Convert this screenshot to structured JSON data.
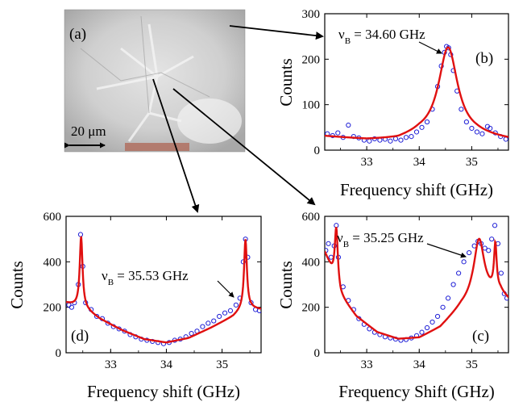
{
  "micrograph": {
    "label": "(a)",
    "scalebar_label": "20 μm"
  },
  "chart_data": [
    {
      "id": "b",
      "type": "scatter",
      "panel_label": "(b)",
      "xlabel": "Frequency shift (GHz)",
      "ylabel": "Counts",
      "xlim": [
        32.2,
        35.7
      ],
      "ylim": [
        0,
        300
      ],
      "xticks": [
        33,
        34,
        35
      ],
      "yticks": [
        0,
        100,
        200,
        300
      ],
      "annotation": "ν_B = 34.60 GHz",
      "annotation_parts": {
        "symbol": "ν",
        "sub": "B",
        "value": " = 34.60 GHz"
      },
      "marker_color": "#1f1fd6",
      "fit_color": "#e01010",
      "fit_peaks": [
        {
          "center": 34.55,
          "height": 195,
          "width": 0.22
        }
      ],
      "fit_baseline": [
        [
          32.2,
          30
        ],
        [
          33.0,
          22
        ],
        [
          33.6,
          22
        ],
        [
          34.0,
          32
        ],
        [
          35.1,
          30
        ],
        [
          35.7,
          22
        ]
      ],
      "points": [
        [
          32.25,
          36
        ],
        [
          32.35,
          32
        ],
        [
          32.45,
          38
        ],
        [
          32.55,
          28
        ],
        [
          32.65,
          55
        ],
        [
          32.75,
          30
        ],
        [
          32.85,
          27
        ],
        [
          32.95,
          22
        ],
        [
          33.05,
          20
        ],
        [
          33.15,
          25
        ],
        [
          33.25,
          22
        ],
        [
          33.35,
          24
        ],
        [
          33.45,
          20
        ],
        [
          33.55,
          25
        ],
        [
          33.65,
          22
        ],
        [
          33.75,
          28
        ],
        [
          33.85,
          30
        ],
        [
          33.95,
          40
        ],
        [
          34.05,
          50
        ],
        [
          34.15,
          62
        ],
        [
          34.25,
          90
        ],
        [
          34.35,
          140
        ],
        [
          34.42,
          185
        ],
        [
          34.48,
          215
        ],
        [
          34.52,
          228
        ],
        [
          34.56,
          225
        ],
        [
          34.6,
          210
        ],
        [
          34.65,
          175
        ],
        [
          34.72,
          130
        ],
        [
          34.8,
          90
        ],
        [
          34.9,
          62
        ],
        [
          35.0,
          48
        ],
        [
          35.1,
          40
        ],
        [
          35.2,
          36
        ],
        [
          35.3,
          52
        ],
        [
          35.35,
          48
        ],
        [
          35.45,
          38
        ],
        [
          35.55,
          30
        ],
        [
          35.65,
          24
        ]
      ]
    },
    {
      "id": "d",
      "type": "scatter",
      "panel_label": "(d)",
      "xlabel": "Frequency shift (GHz)",
      "ylabel": "Counts",
      "xlim": [
        32.2,
        35.7
      ],
      "ylim": [
        0,
        600
      ],
      "xticks": [
        33,
        34,
        35
      ],
      "yticks": [
        0,
        200,
        400,
        600
      ],
      "annotation": "ν_B = 35.53 GHz",
      "annotation_parts": {
        "symbol": "ν",
        "sub": "B",
        "value": " = 35.53 GHz"
      },
      "marker_color": "#1f1fd6",
      "fit_color": "#e01010",
      "fit_peaks": [
        {
          "center": 32.47,
          "height": 310,
          "width": 0.03
        },
        {
          "center": 35.42,
          "height": 300,
          "width": 0.03
        }
      ],
      "fit_baseline": [
        [
          32.2,
          220
        ],
        [
          32.5,
          200
        ],
        [
          32.8,
          150
        ],
        [
          33.2,
          100
        ],
        [
          33.6,
          60
        ],
        [
          34.0,
          45
        ],
        [
          34.4,
          65
        ],
        [
          34.8,
          110
        ],
        [
          35.2,
          160
        ],
        [
          35.4,
          200
        ],
        [
          35.7,
          190
        ]
      ],
      "points": [
        [
          32.25,
          210
        ],
        [
          32.3,
          200
        ],
        [
          32.35,
          220
        ],
        [
          32.42,
          300
        ],
        [
          32.46,
          520
        ],
        [
          32.5,
          380
        ],
        [
          32.55,
          220
        ],
        [
          32.65,
          190
        ],
        [
          32.75,
          160
        ],
        [
          32.85,
          150
        ],
        [
          32.95,
          130
        ],
        [
          33.05,
          115
        ],
        [
          33.15,
          105
        ],
        [
          33.25,
          95
        ],
        [
          33.35,
          80
        ],
        [
          33.45,
          70
        ],
        [
          33.55,
          60
        ],
        [
          33.65,
          55
        ],
        [
          33.75,
          50
        ],
        [
          33.85,
          45
        ],
        [
          33.95,
          40
        ],
        [
          34.05,
          45
        ],
        [
          34.15,
          55
        ],
        [
          34.25,
          60
        ],
        [
          34.35,
          70
        ],
        [
          34.45,
          85
        ],
        [
          34.55,
          95
        ],
        [
          34.65,
          115
        ],
        [
          34.75,
          130
        ],
        [
          34.85,
          140
        ],
        [
          34.95,
          160
        ],
        [
          35.05,
          175
        ],
        [
          35.15,
          185
        ],
        [
          35.25,
          210
        ],
        [
          35.32,
          240
        ],
        [
          35.38,
          400
        ],
        [
          35.42,
          500
        ],
        [
          35.46,
          420
        ],
        [
          35.52,
          220
        ],
        [
          35.6,
          190
        ],
        [
          35.67,
          185
        ]
      ]
    },
    {
      "id": "c",
      "type": "scatter",
      "panel_label": "(c)",
      "xlabel": "Frequency Shift (GHz)",
      "ylabel": "Counts",
      "xlim": [
        32.2,
        35.7
      ],
      "ylim": [
        0,
        600
      ],
      "xticks": [
        33,
        34,
        35
      ],
      "yticks": [
        0,
        200,
        400,
        600
      ],
      "annotation": "ν_B = 35.25 GHz",
      "annotation_parts": {
        "symbol": "ν",
        "sub": "B",
        "value": " = 35.25 GHz"
      },
      "marker_color": "#1f1fd6",
      "fit_color": "#e01010",
      "fit_peaks": [
        {
          "center": 32.42,
          "height": 250,
          "width": 0.035
        },
        {
          "center": 35.14,
          "height": 260,
          "width": 0.12
        },
        {
          "center": 35.45,
          "height": 200,
          "width": 0.03
        }
      ],
      "fit_baseline": [
        [
          32.2,
          440
        ],
        [
          32.3,
          380
        ],
        [
          32.5,
          250
        ],
        [
          32.8,
          160
        ],
        [
          33.2,
          90
        ],
        [
          33.6,
          60
        ],
        [
          34.0,
          65
        ],
        [
          34.4,
          110
        ],
        [
          34.8,
          200
        ],
        [
          35.0,
          230
        ],
        [
          35.3,
          250
        ],
        [
          35.55,
          260
        ],
        [
          35.7,
          230
        ]
      ],
      "points": [
        [
          32.22,
          450
        ],
        [
          32.27,
          480
        ],
        [
          32.32,
          420
        ],
        [
          32.38,
          470
        ],
        [
          32.42,
          560
        ],
        [
          32.46,
          420
        ],
        [
          32.55,
          290
        ],
        [
          32.65,
          230
        ],
        [
          32.75,
          190
        ],
        [
          32.85,
          150
        ],
        [
          32.95,
          125
        ],
        [
          33.05,
          105
        ],
        [
          33.15,
          90
        ],
        [
          33.25,
          80
        ],
        [
          33.35,
          70
        ],
        [
          33.45,
          65
        ],
        [
          33.55,
          60
        ],
        [
          33.65,
          55
        ],
        [
          33.75,
          58
        ],
        [
          33.85,
          65
        ],
        [
          33.95,
          75
        ],
        [
          34.05,
          90
        ],
        [
          34.15,
          110
        ],
        [
          34.25,
          135
        ],
        [
          34.35,
          160
        ],
        [
          34.45,
          200
        ],
        [
          34.55,
          240
        ],
        [
          34.65,
          300
        ],
        [
          34.75,
          350
        ],
        [
          34.85,
          400
        ],
        [
          34.95,
          440
        ],
        [
          35.05,
          470
        ],
        [
          35.12,
          490
        ],
        [
          35.18,
          480
        ],
        [
          35.25,
          460
        ],
        [
          35.32,
          450
        ],
        [
          35.38,
          500
        ],
        [
          35.44,
          560
        ],
        [
          35.5,
          480
        ],
        [
          35.56,
          350
        ],
        [
          35.62,
          260
        ],
        [
          35.67,
          240
        ]
      ]
    }
  ]
}
